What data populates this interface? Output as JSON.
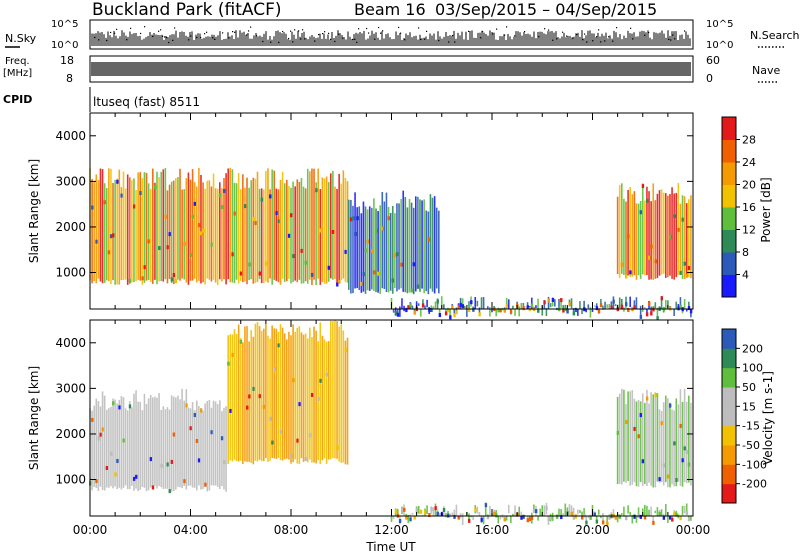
{
  "header": {
    "site": "Buckland Park (fitACF)",
    "beam": "Beam 16",
    "dates": "03/Sep/2015 – 04/Sep/2015"
  },
  "noise_panel": {
    "left_label": "N.Sky",
    "right_label": "N.Search",
    "tick_top": "10^5",
    "tick_bottom": "10^0"
  },
  "freq_panel": {
    "label_top": "Freq.",
    "label_unit": "[MHz]",
    "tick_top": "18",
    "tick_bottom": "8",
    "right_label": "Nave",
    "right_tick_top": "60",
    "right_tick_bottom": "0"
  },
  "cpid_panel": {
    "label": "CPID",
    "value": "ltuseq (fast) 8511"
  },
  "colors": {
    "power_scale": [
      "#1a1aff",
      "#2b5ab8",
      "#2e8b57",
      "#5fbf3c",
      "#f2c200",
      "#f59a00",
      "#f06000",
      "#e41a1a"
    ],
    "velocity_scale": [
      "#e41a1a",
      "#f06000",
      "#f59a00",
      "#f2c200",
      "#bdbdbd",
      "#bdbdbd",
      "#5fbf3c",
      "#2e8b57",
      "#2b5ab8",
      "#1a1aff"
    ]
  },
  "chart_data": [
    {
      "type": "heatmap",
      "name": "power",
      "xlabel": "",
      "ylabel": "Slant Range [km]",
      "yticks": [
        "1000",
        "2000",
        "3000",
        "4000"
      ],
      "ylim": [
        200,
        4500
      ],
      "colorbar": {
        "label": "Power [dB]",
        "ticks": [
          "4",
          "8",
          "12",
          "16",
          "20",
          "24",
          "28"
        ],
        "range": [
          0,
          32
        ]
      },
      "scatter_regions": [
        {
          "t_start": 0.0,
          "t_end": 10.3,
          "range_low": 800,
          "range_high": 3300,
          "dominant": "high power (20-30 dB)"
        },
        {
          "t_start": 10.3,
          "t_end": 14.0,
          "range_low": 600,
          "range_high": 2800,
          "dominant": "low power (4-12 dB)"
        },
        {
          "t_start": 12.0,
          "t_end": 24.0,
          "range_low": 200,
          "range_high": 500,
          "dominant": "ground/near-range scatter"
        },
        {
          "t_start": 21.0,
          "t_end": 24.0,
          "range_low": 900,
          "range_high": 3000,
          "dominant": "high power (16-30 dB)"
        }
      ]
    },
    {
      "type": "heatmap",
      "name": "velocity",
      "xlabel": "Time UT",
      "ylabel": "Slant Range [km]",
      "xticks": [
        "00:00",
        "04:00",
        "08:00",
        "12:00",
        "16:00",
        "20:00",
        "00:00"
      ],
      "yticks": [
        "1000",
        "2000",
        "3000",
        "4000"
      ],
      "ylim": [
        200,
        4500
      ],
      "colorbar": {
        "label": "Velocity [m s-1]",
        "ticks": [
          "200",
          "100",
          "50",
          "15",
          "-15",
          "-50",
          "-100",
          "-200"
        ],
        "range": [
          -250,
          250
        ]
      },
      "scatter_regions": [
        {
          "t_start": 0.0,
          "t_end": 5.5,
          "range_low": 800,
          "range_high": 3000,
          "dominant": "-15 to 15 (grey)"
        },
        {
          "t_start": 5.5,
          "t_end": 10.3,
          "range_low": 1400,
          "range_high": 4500,
          "dominant": "-50 to -15 (orange/yellow)"
        },
        {
          "t_start": 12.0,
          "t_end": 24.0,
          "range_low": 200,
          "range_high": 500,
          "dominant": "15 to 50 (green)"
        },
        {
          "t_start": 21.0,
          "t_end": 24.0,
          "range_low": 900,
          "range_high": 3000,
          "dominant": "-15 to 50 (grey/green)"
        }
      ]
    }
  ]
}
